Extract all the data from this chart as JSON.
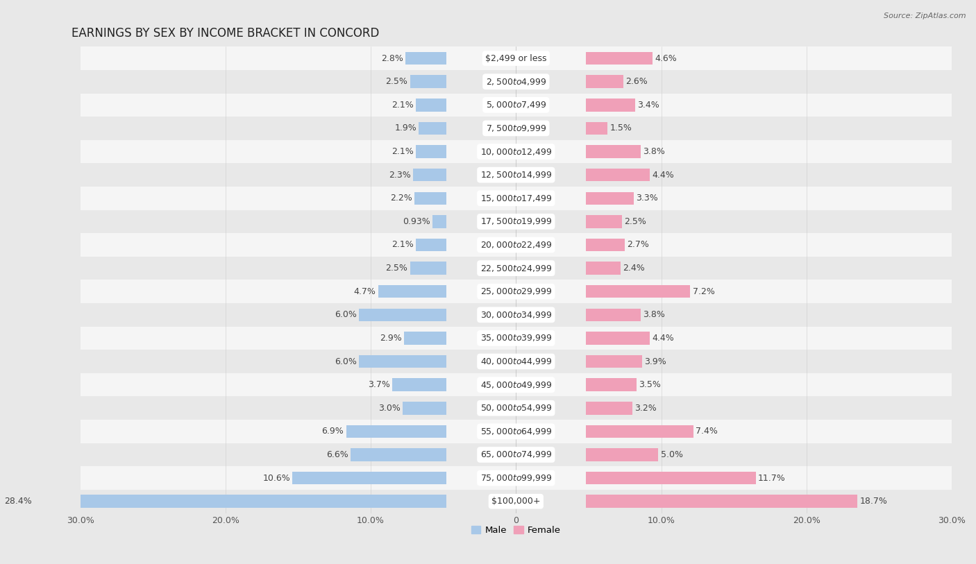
{
  "title": "EARNINGS BY SEX BY INCOME BRACKET IN CONCORD",
  "source": "Source: ZipAtlas.com",
  "categories": [
    "$2,499 or less",
    "$2,500 to $4,999",
    "$5,000 to $7,499",
    "$7,500 to $9,999",
    "$10,000 to $12,499",
    "$12,500 to $14,999",
    "$15,000 to $17,499",
    "$17,500 to $19,999",
    "$20,000 to $22,499",
    "$22,500 to $24,999",
    "$25,000 to $29,999",
    "$30,000 to $34,999",
    "$35,000 to $39,999",
    "$40,000 to $44,999",
    "$45,000 to $49,999",
    "$50,000 to $54,999",
    "$55,000 to $64,999",
    "$65,000 to $74,999",
    "$75,000 to $99,999",
    "$100,000+"
  ],
  "male_values": [
    2.8,
    2.5,
    2.1,
    1.9,
    2.1,
    2.3,
    2.2,
    0.93,
    2.1,
    2.5,
    4.7,
    6.0,
    2.9,
    6.0,
    3.7,
    3.0,
    6.9,
    6.6,
    10.6,
    28.4
  ],
  "female_values": [
    4.6,
    2.6,
    3.4,
    1.5,
    3.8,
    4.4,
    3.3,
    2.5,
    2.7,
    2.4,
    7.2,
    3.8,
    4.4,
    3.9,
    3.5,
    3.2,
    7.4,
    5.0,
    11.7,
    18.7
  ],
  "male_color": "#a8c8e8",
  "female_color": "#f0a0b8",
  "background_color": "#e8e8e8",
  "row_color_even": "#f5f5f5",
  "row_color_odd": "#e8e8e8",
  "axis_max": 30.0,
  "bar_height": 0.55,
  "title_fontsize": 12,
  "label_fontsize": 9,
  "category_fontsize": 9,
  "tick_fontsize": 9
}
